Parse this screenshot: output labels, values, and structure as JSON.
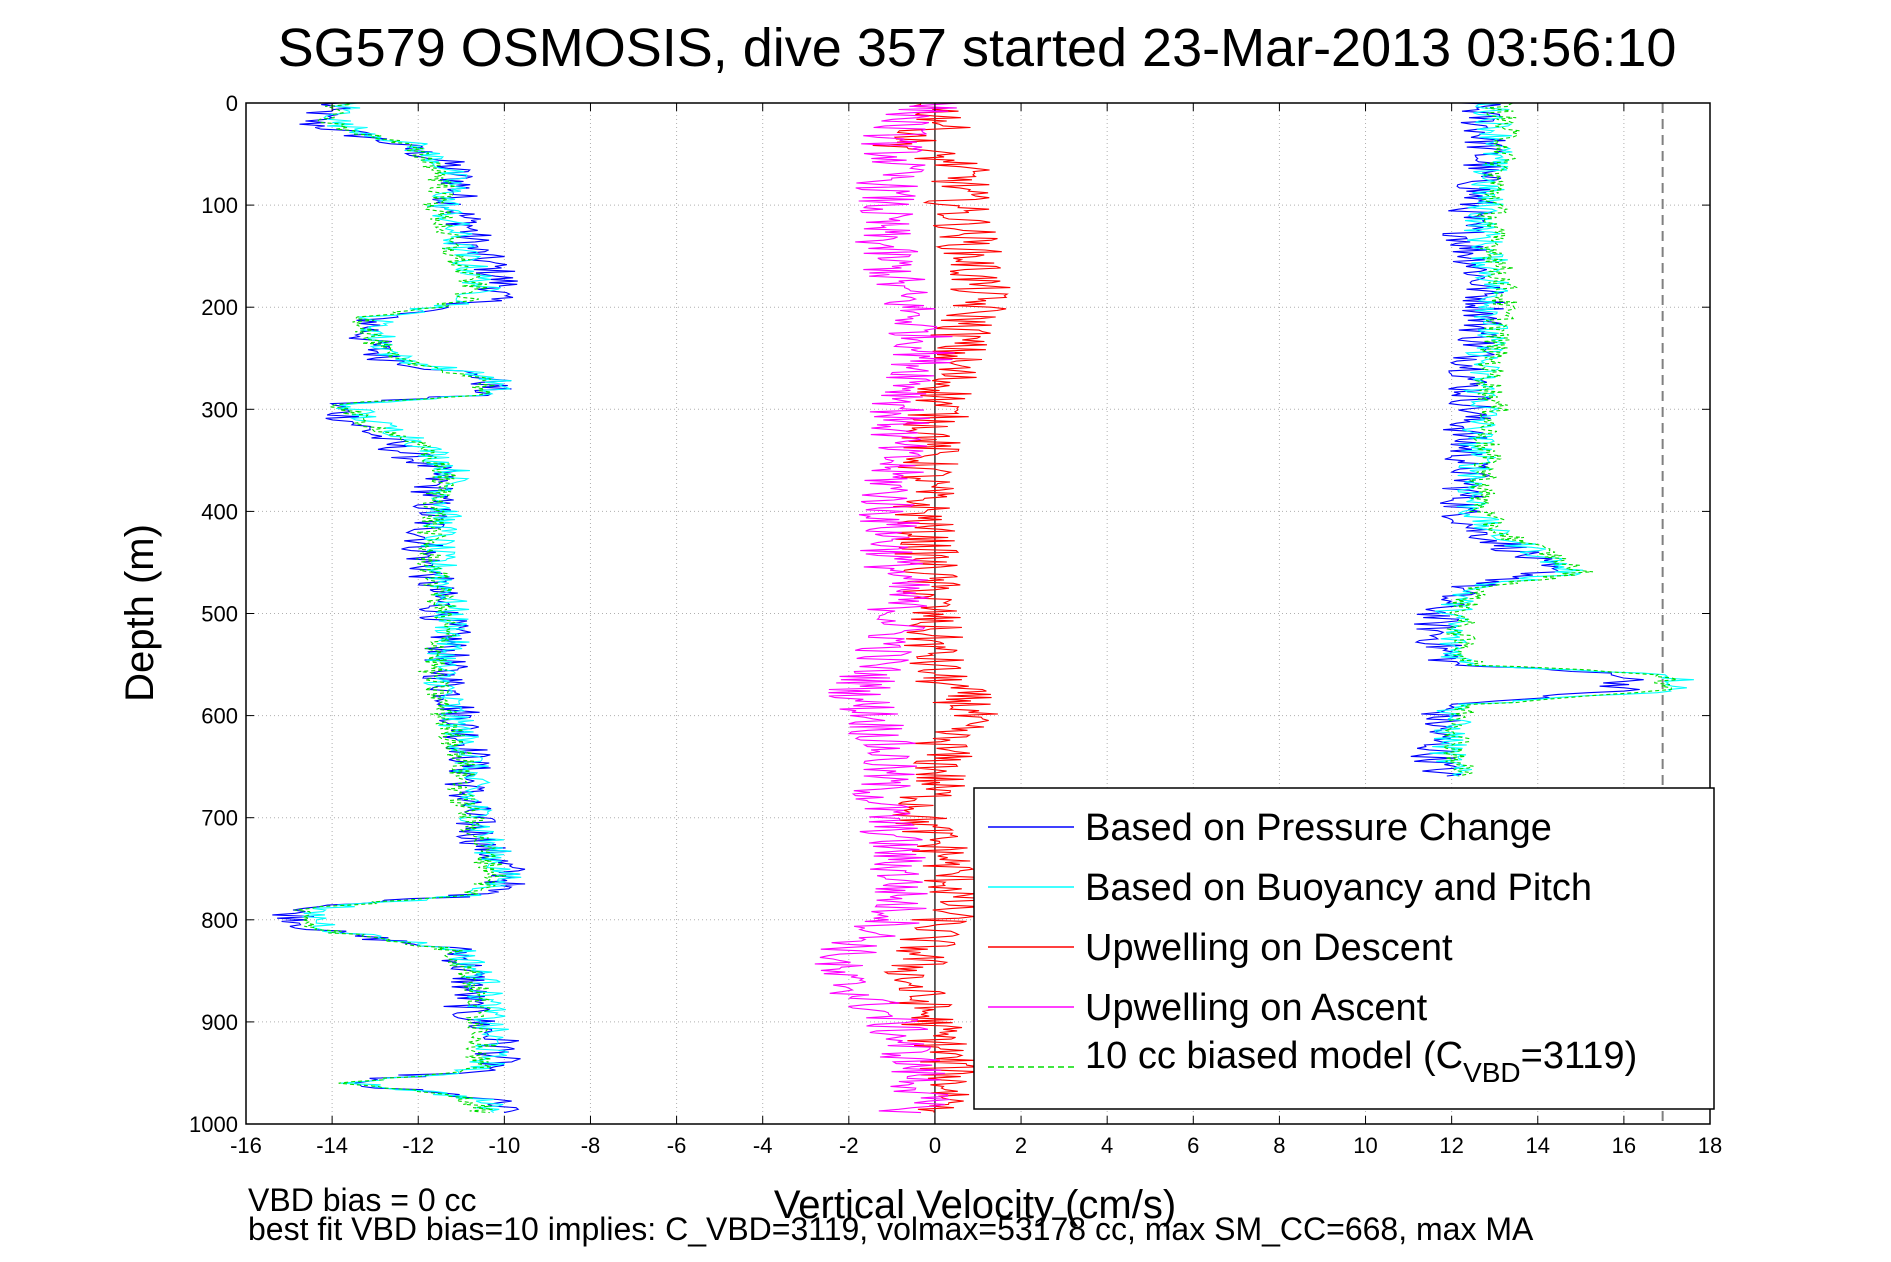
{
  "chart_data": {
    "type": "line",
    "title": "SG579 OSMOSIS, dive 357 started 23-Mar-2013 03:56:10",
    "xlabel": "Vertical Velocity (cm/s)",
    "ylabel": "Depth (m)",
    "xlim": [
      -16,
      18
    ],
    "ylim": [
      0,
      1000
    ],
    "y_reversed": true,
    "grid": true,
    "legend_placement": "bottom-right",
    "xticks": [
      "-16",
      "-14",
      "-12",
      "-10",
      "-8",
      "-6",
      "-4",
      "-2",
      "0",
      "2",
      "4",
      "6",
      "8",
      "10",
      "12",
      "14",
      "16",
      "18"
    ],
    "yticks": [
      "0",
      "100",
      "200",
      "300",
      "400",
      "500",
      "600",
      "700",
      "800",
      "900",
      "1000"
    ],
    "reference_lines": [
      {
        "axis": "x",
        "value": 0,
        "style": "solid",
        "color": "#000000"
      },
      {
        "axis": "x",
        "value": 16.9,
        "style": "dashed",
        "color": "#808080"
      }
    ],
    "legend": [
      {
        "label": "Based on Pressure Change",
        "color": "#0000ff",
        "style": "solid"
      },
      {
        "label": "Based on Buoyancy and Pitch",
        "color": "#00ffff",
        "style": "solid"
      },
      {
        "label": "Upwelling on Descent",
        "color": "#ff0000",
        "style": "solid"
      },
      {
        "label": "Upwelling on Ascent",
        "color": "#ff00ff",
        "style": "solid"
      },
      {
        "label_prefix": "10 cc biased model (C",
        "label_sub": "VBD",
        "label_suffix": "=3119)",
        "color": "#00dd00",
        "style": "dashed"
      }
    ],
    "series": [
      {
        "name": "Based on Pressure Change",
        "color": "#0000ff",
        "segments": [
          {
            "depth": [
              0,
              20,
              40,
              60,
              80,
              100,
              120,
              140,
              160,
              180,
              195,
              210,
              230,
              250,
              270,
              285,
              295,
              310,
              330,
              360,
              400,
              440,
              480,
              520,
              560,
              600,
              640,
              680,
              720,
              760,
              775,
              790,
              810,
              830,
              860,
              890,
              920,
              945,
              960,
              975,
              990
            ],
            "velocity": [
              -14.0,
              -14.5,
              -12.5,
              -11.3,
              -11.0,
              -11.2,
              -10.8,
              -10.8,
              -10.3,
              -10.0,
              -10.5,
              -13.0,
              -13.2,
              -12.8,
              -10.3,
              -10.4,
              -14.0,
              -13.6,
              -12.8,
              -11.6,
              -11.7,
              -11.9,
              -11.6,
              -11.3,
              -11.4,
              -11.0,
              -10.8,
              -10.9,
              -10.6,
              -9.8,
              -10.5,
              -15.0,
              -14.4,
              -11.0,
              -10.8,
              -10.9,
              -10.1,
              -10.2,
              -13.9,
              -10.4,
              -10.0
            ]
          },
          {
            "depth": [
              0,
              20,
              40,
              60,
              80,
              100,
              120,
              140,
              160,
              180,
              200,
              220,
              240,
              260,
              280,
              300,
              320,
              340,
              360,
              380,
              400,
              420,
              440,
              460,
              475,
              490,
              510,
              530,
              550,
              560,
              575,
              590,
              610,
              640,
              660
            ],
            "velocity": [
              12.6,
              12.7,
              12.8,
              12.7,
              12.6,
              12.5,
              12.3,
              12.4,
              12.6,
              12.7,
              12.8,
              12.7,
              12.6,
              12.5,
              12.4,
              12.5,
              12.3,
              12.3,
              12.4,
              12.3,
              12.2,
              12.6,
              13.6,
              14.2,
              12.2,
              11.8,
              11.6,
              11.7,
              12.0,
              16.2,
              15.9,
              11.8,
              11.7,
              11.6,
              11.8
            ]
          }
        ]
      },
      {
        "name": "Based on Buoyancy and Pitch",
        "color": "#00ffff",
        "segments": [
          {
            "depth": [
              0,
              20,
              40,
              60,
              80,
              100,
              120,
              140,
              160,
              180,
              195,
              210,
              230,
              250,
              270,
              285,
              295,
              310,
              330,
              360,
              400,
              440,
              480,
              520,
              560,
              600,
              640,
              680,
              720,
              760,
              775,
              790,
              810,
              830,
              860,
              890,
              920,
              945,
              960,
              975,
              990
            ],
            "velocity": [
              -13.6,
              -13.9,
              -12.2,
              -11.4,
              -11.2,
              -11.4,
              -11.2,
              -11.1,
              -10.8,
              -10.5,
              -10.8,
              -13.0,
              -12.9,
              -12.5,
              -10.2,
              -10.3,
              -13.6,
              -13.2,
              -12.0,
              -11.2,
              -11.4,
              -11.6,
              -11.3,
              -11.2,
              -11.5,
              -11.2,
              -10.8,
              -10.8,
              -10.4,
              -10.0,
              -10.6,
              -14.6,
              -14.0,
              -11.0,
              -10.5,
              -10.4,
              -10.3,
              -10.4,
              -13.4,
              -10.6,
              -10.2
            ]
          },
          {
            "depth": [
              0,
              20,
              40,
              60,
              80,
              100,
              120,
              140,
              160,
              180,
              200,
              220,
              240,
              260,
              280,
              300,
              320,
              340,
              360,
              380,
              400,
              420,
              440,
              460,
              475,
              490,
              510,
              530,
              550,
              560,
              575,
              590,
              610,
              640,
              660
            ],
            "velocity": [
              12.9,
              13.0,
              13.1,
              12.9,
              12.8,
              12.8,
              12.7,
              12.8,
              12.9,
              13.0,
              13.0,
              12.9,
              12.8,
              12.7,
              12.7,
              12.8,
              12.6,
              12.6,
              12.6,
              12.5,
              12.5,
              12.9,
              14.0,
              14.8,
              12.5,
              12.1,
              12.0,
              12.0,
              12.3,
              17.2,
              17.4,
              12.1,
              12.0,
              11.9,
              12.1
            ]
          }
        ]
      },
      {
        "name": "Upwelling on Descent",
        "color": "#ff0000",
        "segments": [
          {
            "depth": [
              0,
              20,
              40,
              60,
              80,
              100,
              120,
              140,
              160,
              180,
              200,
              220,
              240,
              260,
              280,
              300,
              330,
              360,
              400,
              440,
              480,
              520,
              560,
              580,
              595,
              620,
              660,
              700,
              740,
              780,
              820,
              860,
              900,
              940,
              970,
              990
            ],
            "velocity": [
              0.0,
              0.3,
              -0.8,
              0.5,
              0.6,
              0.5,
              0.7,
              0.8,
              0.9,
              1.0,
              1.0,
              0.7,
              0.5,
              0.4,
              0.3,
              0.1,
              -0.1,
              -0.2,
              -0.3,
              -0.2,
              -0.1,
              -0.1,
              0.0,
              0.6,
              0.8,
              0.2,
              0.1,
              -0.4,
              0.3,
              0.5,
              -0.2,
              -0.6,
              -0.1,
              0.3,
              0.4,
              0.3
            ]
          }
        ]
      },
      {
        "name": "Upwelling on Ascent",
        "color": "#ff00ff",
        "segments": [
          {
            "depth": [
              0,
              20,
              40,
              60,
              80,
              100,
              120,
              140,
              160,
              180,
              200,
              220,
              240,
              260,
              280,
              300,
              330,
              360,
              400,
              440,
              480,
              520,
              560,
              580,
              600,
              640,
              680,
              720,
              760,
              800,
              830,
              850,
              870,
              900,
              940,
              970,
              990
            ],
            "velocity": [
              0.0,
              -0.8,
              -1.0,
              -0.9,
              -1.1,
              -1.2,
              -1.3,
              -1.2,
              -1.0,
              -0.9,
              -0.6,
              -0.4,
              -0.2,
              -0.3,
              -0.5,
              -0.8,
              -0.9,
              -1.0,
              -1.1,
              -1.0,
              -0.8,
              -0.9,
              -1.5,
              -1.8,
              -1.4,
              -1.1,
              -1.3,
              -1.0,
              -0.8,
              -0.9,
              -2.0,
              -2.5,
              -1.8,
              -1.0,
              -0.5,
              -0.3,
              -0.6
            ]
          }
        ]
      },
      {
        "name": "10 cc biased model (CVBD=3119)",
        "color": "#00dd00",
        "style": "dashed",
        "segments": [
          {
            "depth": [
              0,
              20,
              40,
              60,
              80,
              100,
              120,
              140,
              160,
              180,
              195,
              210,
              230,
              250,
              270,
              285,
              295,
              310,
              330,
              360,
              400,
              440,
              480,
              520,
              560,
              600,
              640,
              680,
              720,
              760,
              775,
              790,
              810,
              830,
              860,
              890,
              920,
              945,
              960,
              975,
              990
            ],
            "velocity": [
              -13.8,
              -14.1,
              -12.4,
              -11.6,
              -11.4,
              -11.6,
              -11.4,
              -11.3,
              -11.0,
              -10.7,
              -11.0,
              -13.2,
              -13.1,
              -12.7,
              -10.4,
              -10.5,
              -13.8,
              -13.4,
              -12.2,
              -11.4,
              -11.6,
              -11.8,
              -11.5,
              -11.4,
              -11.7,
              -11.4,
              -11.0,
              -11.0,
              -10.6,
              -10.2,
              -10.8,
              -14.8,
              -14.2,
              -11.2,
              -10.7,
              -10.6,
              -10.5,
              -10.6,
              -13.6,
              -10.8,
              -10.4
            ]
          },
          {
            "depth": [
              0,
              20,
              40,
              60,
              80,
              100,
              120,
              140,
              160,
              180,
              200,
              220,
              240,
              260,
              280,
              300,
              320,
              340,
              360,
              380,
              400,
              420,
              440,
              460,
              475,
              490,
              510,
              530,
              550,
              560,
              575,
              590,
              610,
              640,
              660
            ],
            "velocity": [
              13.1,
              13.2,
              13.3,
              13.1,
              13.0,
              13.0,
              12.9,
              13.0,
              13.1,
              13.2,
              13.2,
              13.1,
              13.0,
              12.9,
              12.9,
              13.0,
              12.8,
              12.8,
              12.8,
              12.7,
              12.7,
              13.1,
              14.2,
              15.0,
              12.7,
              12.3,
              12.2,
              12.2,
              12.5,
              17.0,
              17.1,
              12.3,
              12.2,
              12.1,
              12.3
            ]
          }
        ]
      }
    ]
  },
  "footer": {
    "line1": "VBD bias = 0 cc",
    "line2": "best fit VBD bias=10 implies: C_VBD=3119, volmax=53178 cc, max SM_CC=668, max MA"
  }
}
